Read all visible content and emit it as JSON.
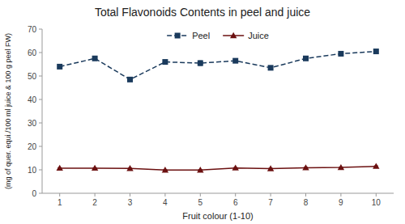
{
  "chart_data": {
    "type": "line",
    "title": "Total Flavonoids Contents in peel and juice",
    "xlabel": "Fruit colour (1-10)",
    "ylabel": "(mg of quer. equi./100 ml juice & 100 g peel FW)",
    "x": [
      1,
      2,
      3,
      4,
      5,
      6,
      7,
      8,
      9,
      10
    ],
    "xlim": [
      0.5,
      10.5
    ],
    "xticks": [
      1,
      2,
      3,
      4,
      5,
      6,
      7,
      8,
      9,
      10
    ],
    "ylim": [
      0,
      70
    ],
    "yticks": [
      0,
      10,
      20,
      30,
      40,
      50,
      60,
      70
    ],
    "grid": false,
    "legend": "top",
    "series": [
      {
        "name": "Peel",
        "color": "#1a3a5c",
        "line_style": "dashed",
        "marker": "square",
        "values": [
          54.0,
          57.5,
          48.5,
          56.0,
          55.5,
          56.5,
          53.5,
          57.5,
          59.5,
          60.5
        ],
        "errors": [
          0.8,
          0.5,
          0.6,
          0.8,
          1.0,
          0.5,
          0.5,
          0.6,
          0.4,
          0.4
        ]
      },
      {
        "name": "Juice",
        "color": "#6b1010",
        "line_style": "solid",
        "marker": "triangle",
        "values": [
          10.7,
          10.7,
          10.6,
          9.9,
          9.9,
          10.8,
          10.5,
          10.9,
          11.0,
          11.5
        ],
        "errors": [
          0.2,
          0.2,
          0.2,
          0.2,
          0.2,
          0.2,
          0.2,
          0.2,
          0.2,
          0.2
        ]
      }
    ]
  }
}
